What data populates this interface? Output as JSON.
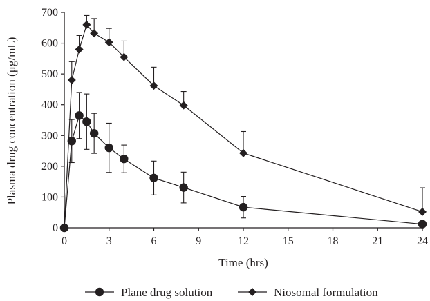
{
  "chart_data": {
    "type": "line",
    "xlabel": "Time (hrs)",
    "ylabel": "Plasma drug concentration (μg/mL)",
    "xlim": [
      0,
      24
    ],
    "ylim": [
      0,
      700
    ],
    "xticks": [
      0,
      3,
      6,
      9,
      12,
      15,
      18,
      21,
      24
    ],
    "yticks": [
      0,
      100,
      200,
      300,
      400,
      500,
      600,
      700
    ],
    "grid": false,
    "legend_position": "bottom",
    "series": [
      {
        "name": "Plane drug solution",
        "marker": "circle",
        "x": [
          0,
          0.5,
          1,
          1.5,
          2,
          3,
          4,
          6,
          8,
          12,
          24
        ],
        "y": [
          0,
          282,
          365,
          345,
          307,
          260,
          224,
          162,
          131,
          67,
          12
        ],
        "error": [
          0,
          70,
          75,
          90,
          65,
          80,
          45,
          55,
          50,
          35,
          0
        ]
      },
      {
        "name": "Niosomal formulation",
        "marker": "diamond",
        "x": [
          0,
          0.5,
          1,
          1.5,
          2,
          3,
          4,
          6,
          8,
          12,
          24
        ],
        "y": [
          0,
          480,
          580,
          660,
          632,
          603,
          555,
          462,
          398,
          243,
          52
        ],
        "error": [
          0,
          60,
          45,
          30,
          48,
          45,
          52,
          60,
          45,
          70,
          78
        ]
      }
    ]
  }
}
